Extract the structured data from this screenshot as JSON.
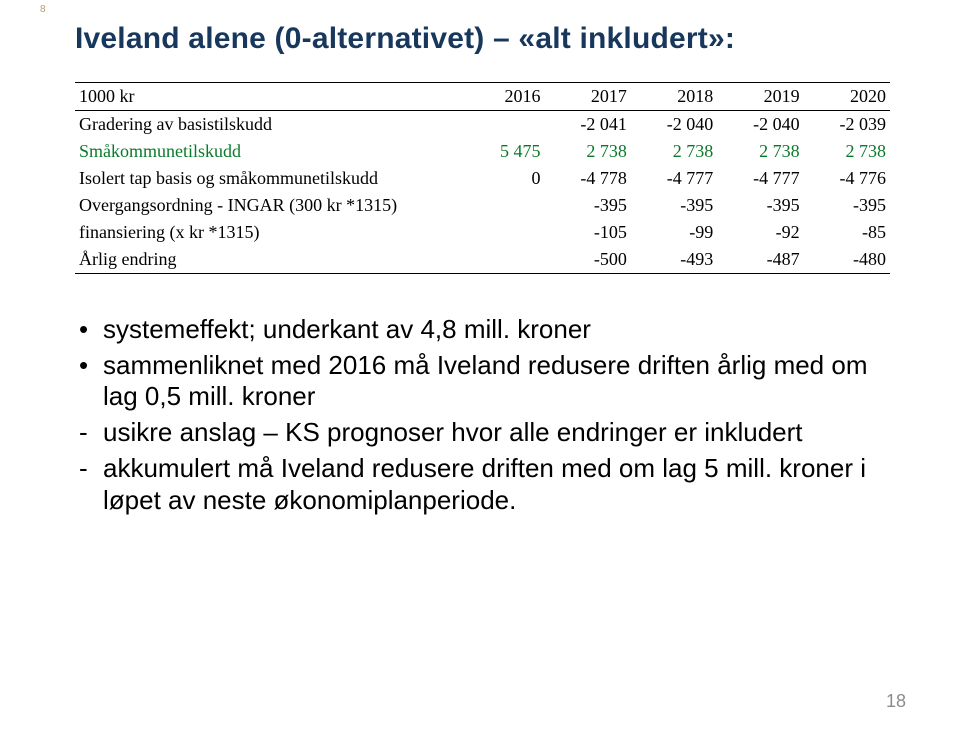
{
  "corner_mark": "8",
  "title": "Iveland alene (0-alternativet) – «alt inkludert»:",
  "table": {
    "columns": [
      "1000 kr",
      "2016",
      "2017",
      "2018",
      "2019",
      "2020"
    ],
    "rows": [
      {
        "label": "Gradering av basistilskudd",
        "vals": [
          "",
          "-2 041",
          "-2 040",
          "-2 040",
          "-2 039"
        ],
        "green": false
      },
      {
        "label": "Småkommunetilskudd",
        "vals": [
          "5 475",
          "2 738",
          "2 738",
          "2 738",
          "2 738"
        ],
        "green": true
      },
      {
        "label": "Isolert tap basis og småkommunetilskudd",
        "vals": [
          "0",
          "-4 778",
          "-4 777",
          "-4 777",
          "-4 776"
        ],
        "green": false
      },
      {
        "label": "Overgangsordning - INGAR (300 kr *1315)",
        "vals": [
          "",
          "-395",
          "-395",
          "-395",
          "-395"
        ],
        "green": false
      },
      {
        "label": "finansiering (x kr *1315)",
        "vals": [
          "",
          "-105",
          "-99",
          "-92",
          "-85"
        ],
        "green": false
      },
      {
        "label": "Årlig endring",
        "vals": [
          "",
          "-500",
          "-493",
          "-487",
          "-480"
        ],
        "green": false
      }
    ]
  },
  "bullets": [
    {
      "type": "dot",
      "text": "systemeffekt; underkant av 4,8 mill. kroner"
    },
    {
      "type": "dot",
      "text": "sammenliknet med 2016 må Iveland redusere driften årlig med om lag 0,5 mill. kroner"
    },
    {
      "type": "dash",
      "text": "usikre anslag – KS prognoser hvor alle endringer er inkludert"
    },
    {
      "type": "dash",
      "text": "akkumulert må Iveland redusere driften med om lag 5 mill. kroner i løpet av neste økonomiplanperiode."
    }
  ],
  "pagenum": "18"
}
